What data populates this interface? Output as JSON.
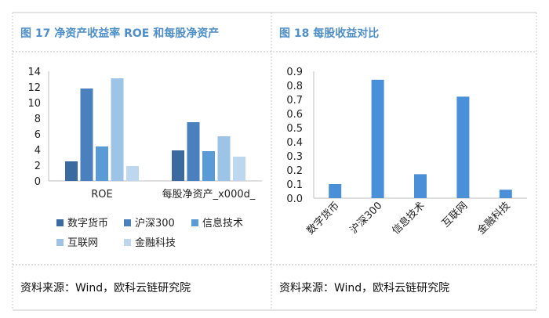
{
  "figures": [
    {
      "title": "图 17 净资产收益率 ROE 和每股净资产",
      "source": "资料来源：Wind，欧科云链研究院"
    },
    {
      "title": "图 18 每股收益对比",
      "source": "资料来源：Wind，欧科云链研究院"
    }
  ],
  "colors": {
    "title": "#4f8fc9",
    "frame": "#c9c9c9",
    "dashed": "#bdbdbd"
  },
  "chart_data": [
    {
      "type": "bar",
      "categories": [
        "ROE",
        "每股净资产_x000d_"
      ],
      "series": [
        {
          "name": "数字货币",
          "color": "#3b6aa0",
          "values": [
            2.5,
            3.9
          ]
        },
        {
          "name": "沪深300",
          "color": "#4a80be",
          "values": [
            11.8,
            7.5
          ]
        },
        {
          "name": "信息技术",
          "color": "#5b9bd5",
          "values": [
            4.4,
            3.8
          ]
        },
        {
          "name": "互联网",
          "color": "#9dc3e6",
          "values": [
            13.1,
            5.7
          ]
        },
        {
          "name": "金融科技",
          "color": "#bdd7ee",
          "values": [
            1.9,
            3.1
          ]
        }
      ],
      "yticks": [
        "0",
        "2",
        "4",
        "6",
        "8",
        "10",
        "12",
        "14"
      ],
      "ylim": [
        0,
        14
      ],
      "legend": "bottom"
    },
    {
      "type": "bar",
      "categories": [
        "数字货币",
        "沪深300",
        "信息技术",
        "互联网",
        "金融科技"
      ],
      "values": [
        0.1,
        0.84,
        0.17,
        0.72,
        0.06
      ],
      "color": "#4a90d9",
      "yticks": [
        "0.0",
        "0.1",
        "0.2",
        "0.3",
        "0.4",
        "0.5",
        "0.6",
        "0.7",
        "0.8",
        "0.9"
      ],
      "ylim": [
        0,
        0.9
      ],
      "legend": "none"
    }
  ]
}
